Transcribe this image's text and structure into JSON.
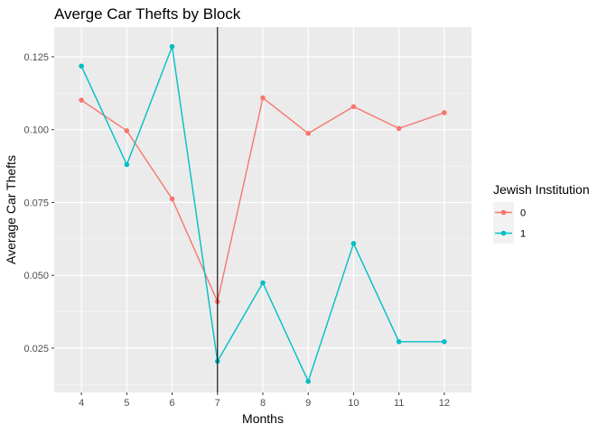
{
  "chart_data": {
    "type": "line",
    "title": "Averge Car Thefts by Block",
    "xlabel": "Months",
    "ylabel": "Average Car Thefts",
    "x": [
      4,
      5,
      6,
      7,
      8,
      9,
      10,
      11,
      12
    ],
    "xlim": [
      3.4,
      12.6
    ],
    "ylim": [
      0.0098,
      0.1352
    ],
    "y_ticks": [
      0.025,
      0.05,
      0.075,
      0.1,
      0.125
    ],
    "y_tick_labels": [
      "0.025",
      "0.050",
      "0.075",
      "0.100",
      "0.125"
    ],
    "x_tick_labels": [
      "4",
      "5",
      "6",
      "7",
      "8",
      "9",
      "10",
      "11",
      "12"
    ],
    "vline_x": 7,
    "grid": true,
    "panel_background": "#ebebeb",
    "legend": {
      "title": "Jewish Institution",
      "position": "right",
      "background": "#f2f2f2"
    },
    "series": [
      {
        "name": "0",
        "color": "#f8766d",
        "values": [
          0.1101,
          0.0996,
          0.0762,
          0.041,
          0.1109,
          0.0987,
          0.1079,
          0.1004,
          0.1058
        ]
      },
      {
        "name": "1",
        "color": "#00bfc4",
        "values": [
          0.1218,
          0.088,
          0.1285,
          0.0205,
          0.0474,
          0.0136,
          0.0609,
          0.0272,
          0.0272
        ]
      }
    ]
  }
}
